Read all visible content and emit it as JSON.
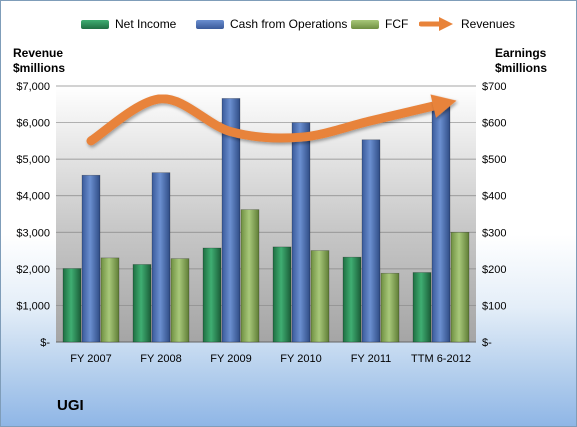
{
  "company": "UGI",
  "left_axis_title": [
    "Revenue",
    "$millions"
  ],
  "right_axis_title": [
    "Earnings",
    "$millions"
  ],
  "legend": [
    {
      "label": "Net Income",
      "color": "#2e8b57",
      "kind": "bar"
    },
    {
      "label": "Cash from Operations",
      "color": "#4a6fb5",
      "kind": "bar"
    },
    {
      "label": "FCF",
      "color": "#8aab5a",
      "kind": "bar"
    },
    {
      "label": "Revenues",
      "color": "#e8833a",
      "kind": "arrow"
    }
  ],
  "chart_data": {
    "type": "bar",
    "categories": [
      "FY 2007",
      "FY 2008",
      "FY 2009",
      "FY 2010",
      "FY 2011",
      "TTM 6-2012"
    ],
    "series": [
      {
        "name": "Net Income",
        "axis": "right",
        "color": "#2e8b57",
        "values": [
          201,
          212,
          257,
          260,
          232,
          190
        ]
      },
      {
        "name": "Cash from Operations",
        "axis": "right",
        "color": "#4a6fb5",
        "values": [
          456,
          463,
          666,
          600,
          553,
          654
        ]
      },
      {
        "name": "FCF",
        "axis": "right",
        "color": "#8aab5a",
        "values": [
          230,
          228,
          362,
          250,
          188,
          300
        ]
      },
      {
        "name": "Revenues",
        "axis": "left",
        "type": "line",
        "color": "#e8833a",
        "values": [
          5500,
          6650,
          5750,
          5600,
          6050,
          6500
        ]
      }
    ],
    "left_axis": {
      "label": "Revenue $millions",
      "ylim": [
        0,
        7000
      ],
      "ticks": [
        "$-",
        "$1,000",
        "$2,000",
        "$3,000",
        "$4,000",
        "$5,000",
        "$6,000",
        "$7,000"
      ]
    },
    "right_axis": {
      "label": "Earnings $millions",
      "ylim": [
        0,
        700
      ],
      "ticks": [
        "$-",
        "$100",
        "$200",
        "$300",
        "$400",
        "$500",
        "$600",
        "$700"
      ]
    },
    "grid": true,
    "legend_position": "top"
  }
}
